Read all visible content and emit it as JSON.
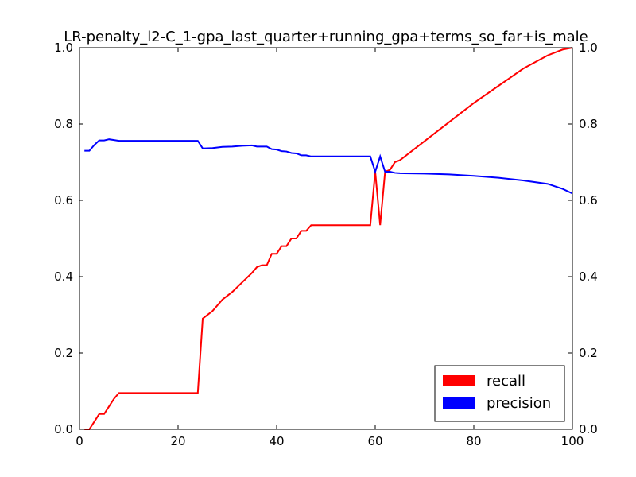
{
  "chart_data": {
    "type": "line",
    "title": "LR-penalty_l2-C_1-gpa_last_quarter+running_gpa+terms_so_far+is_male",
    "xlabel": "",
    "ylabel": "",
    "xlim": [
      0,
      100
    ],
    "ylim": [
      0,
      1.0
    ],
    "ylim_right": [
      0,
      1.0
    ],
    "x_ticks": [
      0,
      20,
      40,
      60,
      80,
      100
    ],
    "x_tick_labels": [
      "0",
      "20",
      "40",
      "60",
      "80",
      "100"
    ],
    "y_ticks": [
      0,
      0.2,
      0.4,
      0.6,
      0.8,
      1.0
    ],
    "y_tick_labels": [
      "0.0",
      "0.2",
      "0.4",
      "0.6",
      "0.8",
      "1.0"
    ],
    "y_tick_labels_right": [
      "0.0",
      "0.2",
      "0.4",
      "0.6",
      "0.8",
      "1.0"
    ],
    "grid": false,
    "legend_position": "lower-right",
    "legend_swatch": "patch",
    "series": [
      {
        "name": "recall",
        "color": "#ff0000",
        "points": [
          [
            1,
            0.0
          ],
          [
            2,
            0.0
          ],
          [
            3,
            0.02
          ],
          [
            4,
            0.04
          ],
          [
            5,
            0.04
          ],
          [
            6,
            0.06
          ],
          [
            7,
            0.08
          ],
          [
            8,
            0.095
          ],
          [
            9,
            0.095
          ],
          [
            24,
            0.095
          ],
          [
            25,
            0.29
          ],
          [
            27,
            0.31
          ],
          [
            29,
            0.34
          ],
          [
            31,
            0.36
          ],
          [
            33,
            0.385
          ],
          [
            35,
            0.41
          ],
          [
            36,
            0.425
          ],
          [
            37,
            0.43
          ],
          [
            38,
            0.43
          ],
          [
            39,
            0.46
          ],
          [
            40,
            0.46
          ],
          [
            41,
            0.48
          ],
          [
            42,
            0.48
          ],
          [
            43,
            0.5
          ],
          [
            44,
            0.5
          ],
          [
            45,
            0.52
          ],
          [
            46,
            0.52
          ],
          [
            47,
            0.535
          ],
          [
            59,
            0.535
          ],
          [
            60,
            0.675
          ],
          [
            61,
            0.535
          ],
          [
            62,
            0.675
          ],
          [
            63,
            0.68
          ],
          [
            64,
            0.7
          ],
          [
            65,
            0.705
          ],
          [
            70,
            0.755
          ],
          [
            75,
            0.805
          ],
          [
            80,
            0.855
          ],
          [
            85,
            0.9
          ],
          [
            90,
            0.945
          ],
          [
            95,
            0.98
          ],
          [
            98,
            0.995
          ],
          [
            100,
            1.0
          ]
        ]
      },
      {
        "name": "precision",
        "color": "#0000ff",
        "points": [
          [
            1,
            0.73
          ],
          [
            2,
            0.73
          ],
          [
            3,
            0.745
          ],
          [
            4,
            0.757
          ],
          [
            5,
            0.757
          ],
          [
            6,
            0.76
          ],
          [
            7,
            0.758
          ],
          [
            8,
            0.756
          ],
          [
            24,
            0.756
          ],
          [
            25,
            0.736
          ],
          [
            27,
            0.737
          ],
          [
            29,
            0.74
          ],
          [
            31,
            0.741
          ],
          [
            33,
            0.743
          ],
          [
            35,
            0.744
          ],
          [
            36,
            0.741
          ],
          [
            38,
            0.741
          ],
          [
            39,
            0.734
          ],
          [
            40,
            0.733
          ],
          [
            41,
            0.729
          ],
          [
            42,
            0.728
          ],
          [
            43,
            0.724
          ],
          [
            44,
            0.723
          ],
          [
            45,
            0.718
          ],
          [
            46,
            0.718
          ],
          [
            47,
            0.715
          ],
          [
            59,
            0.715
          ],
          [
            60,
            0.675
          ],
          [
            61,
            0.715
          ],
          [
            62,
            0.675
          ],
          [
            63,
            0.675
          ],
          [
            64,
            0.672
          ],
          [
            65,
            0.671
          ],
          [
            70,
            0.67
          ],
          [
            75,
            0.668
          ],
          [
            80,
            0.664
          ],
          [
            85,
            0.659
          ],
          [
            90,
            0.652
          ],
          [
            95,
            0.643
          ],
          [
            98,
            0.63
          ],
          [
            100,
            0.618
          ]
        ]
      }
    ]
  }
}
